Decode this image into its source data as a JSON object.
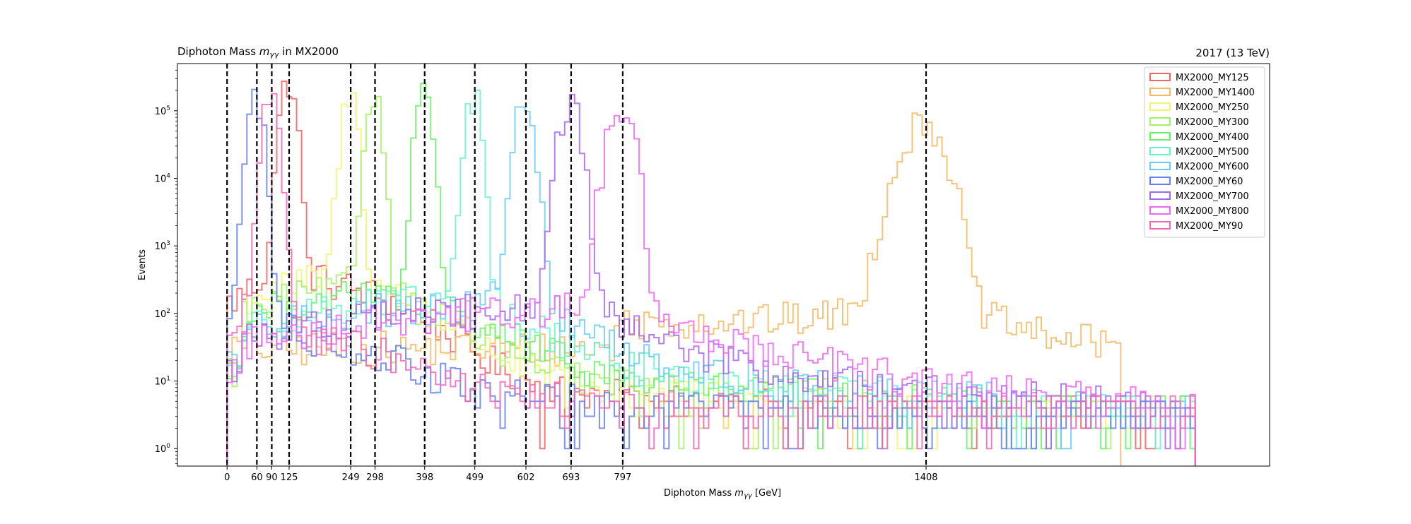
{
  "chart_data": {
    "type": "step-histogram",
    "title_left_prefix": "Diphoton Mass ",
    "title_left_math": "m",
    "title_left_sub": "γγ",
    "title_left_suffix": " in MX2000",
    "title_right": "2017 (13 TeV)",
    "xlabel_prefix": "Diphoton Mass ",
    "xlabel_math": "m",
    "xlabel_sub": "γγ",
    "xlabel_suffix": " [GeV]",
    "ylabel": "Events",
    "yscale": "log",
    "xlim": [
      -100,
      2100
    ],
    "ylim": [
      0.55,
      500000
    ],
    "bin_width": 10,
    "x_ticks": [
      0,
      60,
      90,
      125,
      249,
      298,
      398,
      499,
      602,
      693,
      797,
      1408
    ],
    "x_tick_labels": [
      "0",
      "60",
      "90",
      "125",
      "249",
      "298",
      "398",
      "499",
      "602",
      "693",
      "797",
      "1408"
    ],
    "y_ticks": [
      1,
      10,
      100,
      1000,
      10000,
      100000
    ],
    "y_tick_exponents": [
      "0",
      "1",
      "2",
      "3",
      "4",
      "5"
    ],
    "y_tick_base": "10",
    "vlines": [
      0,
      60,
      90,
      125,
      249,
      298,
      398,
      499,
      602,
      693,
      797,
      1408
    ],
    "legend_position": "upper right",
    "series": [
      {
        "name": "MX2000_MY125",
        "color": "#f26363",
        "peak": 125,
        "peak_height": 270000,
        "shoulder": 300,
        "shoulder_lo": 0,
        "bump_center": 180,
        "bump_height": 250,
        "tail": 12,
        "tail_end": 1950
      },
      {
        "name": "MX2000_MY1400",
        "color": "#f5b866",
        "peak": 1408,
        "peak_height": 65000,
        "shoulder": 60,
        "shoulder_lo": 780,
        "bump_center": 1000,
        "bump_height": 45,
        "tail": 30,
        "tail_end": 1800
      },
      {
        "name": "MX2000_MY250",
        "color": "#f2f273",
        "peak": 249,
        "peak_height": 160000,
        "shoulder": 300,
        "shoulder_lo": 30,
        "bump_center": 200,
        "bump_height": 260,
        "tail": 12,
        "tail_end": 1950
      },
      {
        "name": "MX2000_MY300",
        "color": "#a6f266",
        "peak": 298,
        "peak_height": 160000,
        "shoulder": 180,
        "shoulder_lo": 30,
        "bump_center": 220,
        "bump_height": 170,
        "tail": 14,
        "tail_end": 1950
      },
      {
        "name": "MX2000_MY400",
        "color": "#66f266",
        "peak": 398,
        "peak_height": 150000,
        "shoulder": 140,
        "shoulder_lo": 30,
        "bump_center": 260,
        "bump_height": 150,
        "tail": 15,
        "tail_end": 1950
      },
      {
        "name": "MX2000_MY500",
        "color": "#66f2cc",
        "peak": 499,
        "peak_height": 140000,
        "shoulder": 110,
        "shoulder_lo": 30,
        "bump_center": 320,
        "bump_height": 120,
        "tail": 15,
        "tail_end": 1950
      },
      {
        "name": "MX2000_MY600",
        "color": "#66ccf2",
        "peak": 602,
        "peak_height": 130000,
        "shoulder": 90,
        "shoulder_lo": 30,
        "bump_center": 380,
        "bump_height": 100,
        "tail": 15,
        "tail_end": 1950
      },
      {
        "name": "MX2000_MY60",
        "color": "#6680f2",
        "peak": 60,
        "peak_height": 140000,
        "shoulder": 250,
        "shoulder_lo": 0,
        "bump_center": 160,
        "bump_height": 30,
        "tail": 10,
        "tail_end": 1950
      },
      {
        "name": "MX2000_MY700",
        "color": "#a666f2",
        "peak": 693,
        "peak_height": 110000,
        "shoulder": 90,
        "shoulder_lo": 30,
        "bump_center": 450,
        "bump_height": 90,
        "tail": 15,
        "tail_end": 1950
      },
      {
        "name": "MX2000_MY800",
        "color": "#ee66f2",
        "peak": 797,
        "peak_height": 110000,
        "shoulder": 90,
        "shoulder_lo": 30,
        "bump_center": 550,
        "bump_height": 85,
        "tail": 15,
        "tail_end": 1950
      },
      {
        "name": "MX2000_MY90",
        "color": "#f266b8",
        "peak": 90,
        "peak_height": 150000,
        "shoulder": 250,
        "shoulder_lo": 0,
        "bump_center": 170,
        "bump_height": 28,
        "tail": 10,
        "tail_end": 1950
      }
    ]
  }
}
